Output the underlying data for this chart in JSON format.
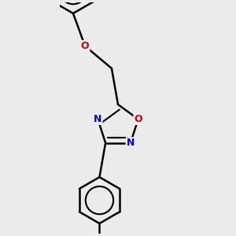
{
  "background_color": "#ebebeb",
  "bond_color": "#000000",
  "nitrogen_color": "#0000cc",
  "oxygen_color": "#cc0000",
  "bond_width": 1.8,
  "figsize": [
    3.0,
    3.0
  ],
  "dpi": 100,
  "xlim": [
    -1.2,
    1.8
  ],
  "ylim": [
    -2.8,
    3.2
  ]
}
